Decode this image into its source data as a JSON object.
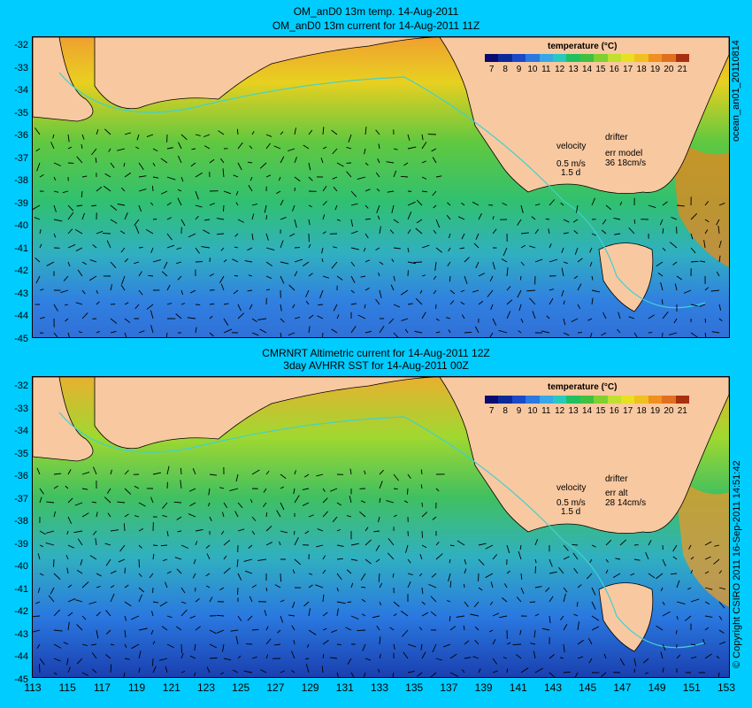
{
  "top": {
    "title1": "OM_anD0 13m temp. 14-Aug-2011",
    "title2": "OM_anD0 13m current for 14-Aug-2011 11Z",
    "legend_title": "temperature (°C)",
    "velocity_label": "velocity",
    "velocity_value": "0.5 m/s",
    "velocity_time": "1.5 d",
    "drifter_label": "drifter",
    "err_label": "err model",
    "err_value": "36 18cm/s",
    "side_label": "ocean_an01_20110814"
  },
  "bottom": {
    "title1": "CMRNRT Altimetric current for 14-Aug-2011 12Z",
    "title2": "3day AVHRR SST for 14-Aug-2011 00Z",
    "legend_title": "temperature (°C)",
    "velocity_label": "velocity",
    "velocity_value": "0.5 m/s",
    "velocity_time": "1.5 d",
    "drifter_label": "drifter",
    "err_label": "err alt",
    "err_value": "28 14cm/s",
    "side_label": "© Copyright CSIRO 2011  16-Sep-2011 14:51:42"
  },
  "scale_ticks": [
    "7",
    "8",
    "9",
    "10",
    "11",
    "12",
    "13",
    "14",
    "15",
    "16",
    "17",
    "18",
    "19",
    "20",
    "21"
  ],
  "scale_colors": [
    "#0a0a70",
    "#0a2a9a",
    "#1a4ac8",
    "#2a78e0",
    "#36a8e8",
    "#28c8c0",
    "#20c060",
    "#40c040",
    "#80d030",
    "#c0e030",
    "#e8e020",
    "#f0c020",
    "#f09020",
    "#e07020",
    "#a83010"
  ],
  "y_ticks": [
    "-32",
    "-33",
    "-34",
    "-35",
    "-36",
    "-37",
    "-38",
    "-39",
    "-40",
    "-41",
    "-42",
    "-43",
    "-44",
    "-45"
  ],
  "x_ticks": [
    "113",
    "115",
    "117",
    "119",
    "121",
    "123",
    "125",
    "127",
    "129",
    "131",
    "133",
    "135",
    "137",
    "139",
    "141",
    "143",
    "145",
    "147",
    "149",
    "151",
    "153"
  ],
  "colors": {
    "background": "#00ccff",
    "land": "#f8c8a0",
    "coast": "#40d0d0"
  }
}
